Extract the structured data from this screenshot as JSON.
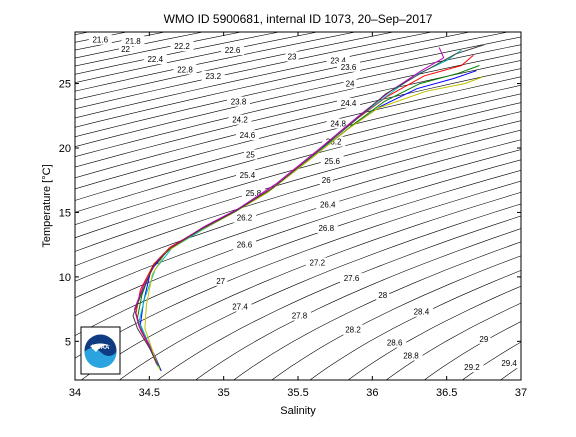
{
  "chart_data": {
    "type": "line",
    "title": "WMO ID 5900681, internal ID 1073, 20–Sep–2017",
    "xlabel": "Salinity",
    "ylabel": "Temperature [°C]",
    "xlim": [
      34,
      37
    ],
    "ylim": [
      2,
      29
    ],
    "xticks": [
      34,
      34.5,
      35,
      35.5,
      36,
      36.5,
      37
    ],
    "xtick_labels": [
      "34",
      "34.5",
      "35",
      "35.5",
      "36",
      "36.5",
      "37"
    ],
    "yticks": [
      5,
      10,
      15,
      20,
      25
    ],
    "ytick_labels": [
      "5",
      "10",
      "15",
      "20",
      "25"
    ],
    "grid": false,
    "logo": "NOAA",
    "density_contours": {
      "line_color": "#000000",
      "labels": [
        {
          "text": "21.6",
          "s": 34.17,
          "t": 28.4
        },
        {
          "text": "21.8",
          "s": 34.39,
          "t": 28.3
        },
        {
          "text": "22",
          "s": 34.34,
          "t": 27.7
        },
        {
          "text": "22.2",
          "s": 34.72,
          "t": 27.9
        },
        {
          "text": "22.4",
          "s": 34.54,
          "t": 26.9
        },
        {
          "text": "22.6",
          "s": 35.06,
          "t": 27.6
        },
        {
          "text": "22.8",
          "s": 34.74,
          "t": 26.1
        },
        {
          "text": "23",
          "s": 35.46,
          "t": 27.1
        },
        {
          "text": "23.2",
          "s": 34.93,
          "t": 25.6
        },
        {
          "text": "23.4",
          "s": 35.77,
          "t": 26.8
        },
        {
          "text": "23.6",
          "s": 35.84,
          "t": 26.3
        },
        {
          "text": "23.8",
          "s": 35.1,
          "t": 23.6
        },
        {
          "text": "24",
          "s": 35.85,
          "t": 25.0
        },
        {
          "text": "24.2",
          "s": 35.11,
          "t": 22.2
        },
        {
          "text": "24.4",
          "s": 35.84,
          "t": 23.5
        },
        {
          "text": "24.6",
          "s": 35.16,
          "t": 21.0
        },
        {
          "text": "24.8",
          "s": 35.77,
          "t": 21.9
        },
        {
          "text": "25",
          "s": 35.18,
          "t": 19.5
        },
        {
          "text": "25.2",
          "s": 35.74,
          "t": 20.5
        },
        {
          "text": "25.4",
          "s": 35.16,
          "t": 17.9
        },
        {
          "text": "25.6",
          "s": 35.73,
          "t": 19.0
        },
        {
          "text": "25.8",
          "s": 35.2,
          "t": 16.5
        },
        {
          "text": "26",
          "s": 35.69,
          "t": 17.5
        },
        {
          "text": "26.2",
          "s": 35.14,
          "t": 14.6
        },
        {
          "text": "26.4",
          "s": 35.7,
          "t": 15.6
        },
        {
          "text": "26.6",
          "s": 35.14,
          "t": 12.5
        },
        {
          "text": "26.8",
          "s": 35.69,
          "t": 13.8
        },
        {
          "text": "27",
          "s": 34.98,
          "t": 9.7
        },
        {
          "text": "27.2",
          "s": 35.63,
          "t": 11.1
        },
        {
          "text": "27.4",
          "s": 35.11,
          "t": 7.7
        },
        {
          "text": "27.6",
          "s": 35.86,
          "t": 9.9
        },
        {
          "text": "27.8",
          "s": 35.51,
          "t": 7.0
        },
        {
          "text": "28",
          "s": 36.07,
          "t": 8.6
        },
        {
          "text": "28.2",
          "s": 35.87,
          "t": 5.9
        },
        {
          "text": "28.4",
          "s": 36.33,
          "t": 7.3
        },
        {
          "text": "28.6",
          "s": 36.15,
          "t": 4.9
        },
        {
          "text": "28.8",
          "s": 36.26,
          "t": 3.9
        },
        {
          "text": "29",
          "s": 36.75,
          "t": 5.2
        },
        {
          "text": "29.2",
          "s": 36.67,
          "t": 3.0
        },
        {
          "text": "29.4",
          "s": 36.92,
          "t": 3.3
        }
      ]
    },
    "profile_colors": [
      "#0000ff",
      "#008000",
      "#ff0000",
      "#00bfbf",
      "#bf00bf",
      "#bfbf00",
      "#404040"
    ],
    "series": [
      {
        "values": [
          [
            34.58,
            2.7
          ],
          [
            34.54,
            3.8
          ],
          [
            34.48,
            5.2
          ],
          [
            34.44,
            6.3
          ],
          [
            34.46,
            8.0
          ],
          [
            34.51,
            10.5
          ],
          [
            34.62,
            12.0
          ],
          [
            34.82,
            13.5
          ],
          [
            35.05,
            14.9
          ],
          [
            35.3,
            16.6
          ],
          [
            35.6,
            19.3
          ],
          [
            35.85,
            21.6
          ],
          [
            36.05,
            23.2
          ],
          [
            36.3,
            24.6
          ],
          [
            36.55,
            25.4
          ],
          [
            36.7,
            26.0
          ]
        ]
      },
      {
        "values": [
          [
            34.57,
            2.9
          ],
          [
            34.52,
            4.2
          ],
          [
            34.46,
            5.6
          ],
          [
            34.42,
            6.8
          ],
          [
            34.45,
            8.6
          ],
          [
            34.52,
            10.8
          ],
          [
            34.63,
            12.1
          ],
          [
            34.84,
            13.6
          ],
          [
            35.07,
            15.0
          ],
          [
            35.32,
            16.8
          ],
          [
            35.62,
            19.5
          ],
          [
            35.88,
            21.9
          ],
          [
            36.08,
            23.6
          ],
          [
            36.32,
            25.0
          ],
          [
            36.58,
            25.8
          ],
          [
            36.72,
            26.4
          ]
        ]
      },
      {
        "values": [
          [
            34.55,
            3.2
          ],
          [
            34.5,
            4.6
          ],
          [
            34.44,
            5.9
          ],
          [
            34.41,
            7.2
          ],
          [
            34.44,
            9.0
          ],
          [
            34.53,
            11.0
          ],
          [
            34.64,
            12.3
          ],
          [
            34.86,
            13.8
          ],
          [
            35.09,
            15.2
          ],
          [
            35.34,
            17.0
          ],
          [
            35.64,
            19.8
          ],
          [
            35.9,
            22.3
          ],
          [
            36.1,
            24.0
          ],
          [
            36.35,
            25.6
          ],
          [
            36.6,
            26.4
          ],
          [
            36.68,
            27.2
          ]
        ]
      },
      {
        "values": [
          [
            34.56,
            3.0
          ],
          [
            34.51,
            4.4
          ],
          [
            34.47,
            5.5
          ],
          [
            34.43,
            6.5
          ],
          [
            34.47,
            8.4
          ],
          [
            34.54,
            10.6
          ],
          [
            34.65,
            12.2
          ],
          [
            34.85,
            13.6
          ],
          [
            35.08,
            15.1
          ],
          [
            35.33,
            16.9
          ],
          [
            35.63,
            19.6
          ],
          [
            35.86,
            22.0
          ],
          [
            36.07,
            23.8
          ],
          [
            36.28,
            25.6
          ],
          [
            36.5,
            26.8
          ],
          [
            36.6,
            27.6
          ]
        ]
      },
      {
        "values": [
          [
            34.55,
            3.4
          ],
          [
            34.49,
            4.9
          ],
          [
            34.43,
            6.2
          ],
          [
            34.4,
            7.5
          ],
          [
            34.46,
            9.3
          ],
          [
            34.55,
            11.2
          ],
          [
            34.66,
            12.4
          ],
          [
            34.87,
            13.9
          ],
          [
            35.1,
            15.3
          ],
          [
            35.35,
            17.2
          ],
          [
            35.65,
            20.0
          ],
          [
            35.92,
            22.6
          ],
          [
            36.12,
            24.4
          ],
          [
            36.33,
            26.0
          ],
          [
            36.48,
            27.0
          ],
          [
            36.45,
            27.8
          ]
        ]
      },
      {
        "values": [
          [
            34.57,
            2.8
          ],
          [
            34.53,
            4.0
          ],
          [
            34.5,
            5.0
          ],
          [
            34.47,
            6.0
          ],
          [
            34.48,
            7.8
          ],
          [
            34.52,
            10.2
          ],
          [
            34.61,
            11.9
          ],
          [
            34.81,
            13.4
          ],
          [
            35.04,
            14.8
          ],
          [
            35.29,
            16.5
          ],
          [
            35.59,
            19.2
          ],
          [
            35.84,
            21.5
          ],
          [
            36.04,
            23.1
          ],
          [
            36.36,
            24.4
          ],
          [
            36.62,
            25.0
          ],
          [
            36.74,
            25.5
          ]
        ]
      },
      {
        "values": [
          [
            34.56,
            3.1
          ],
          [
            34.5,
            4.5
          ],
          [
            34.42,
            6.0
          ],
          [
            34.39,
            7.0
          ],
          [
            34.45,
            8.8
          ],
          [
            34.53,
            10.9
          ],
          [
            34.64,
            12.2
          ],
          [
            34.85,
            13.7
          ],
          [
            35.08,
            15.1
          ],
          [
            35.33,
            16.9
          ],
          [
            35.63,
            19.7
          ],
          [
            35.89,
            22.2
          ],
          [
            36.09,
            24.2
          ],
          [
            36.34,
            25.9
          ],
          [
            36.56,
            27.3
          ],
          [
            36.75,
            28.0
          ]
        ]
      }
    ]
  }
}
